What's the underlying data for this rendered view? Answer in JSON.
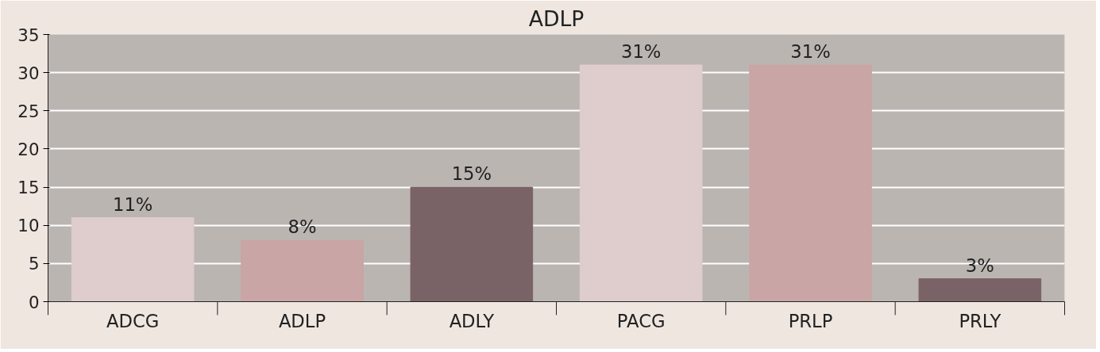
{
  "chart_data": {
    "type": "bar",
    "title": "ADLP",
    "categories": [
      "ADCG",
      "ADLP",
      "ADLY",
      "PACG",
      "PRLP",
      "PRLY"
    ],
    "values": [
      11,
      8,
      15,
      31,
      31,
      3
    ],
    "colors": [
      "#dfcccd",
      "#c9a5a6",
      "#7a6366",
      "#dfcccd",
      "#c9a5a6",
      "#7a6366"
    ],
    "value_labels": [
      "11%",
      "8%",
      "15%",
      "31%",
      "31%",
      "3%"
    ],
    "ylim": [
      0,
      35
    ],
    "yticks": [
      0,
      5,
      10,
      15,
      20,
      25,
      30,
      35
    ],
    "grid": "y"
  }
}
